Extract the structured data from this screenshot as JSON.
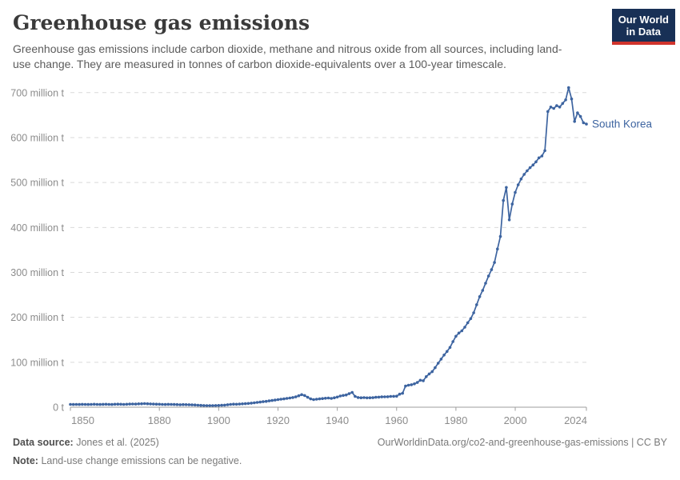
{
  "header": {
    "title": "Greenhouse gas emissions",
    "subtitle": "Greenhouse gas emissions include carbon dioxide, methane and nitrous oxide from all sources, including land-use change. They are measured in tonnes of carbon dioxide-equivalents over a 100-year timescale.",
    "logo": {
      "line1": "Our World",
      "line2": "in Data"
    }
  },
  "footer": {
    "source_label": "Data source:",
    "source_value": "Jones et al. (2025)",
    "note_label": "Note:",
    "note_value": "Land-use change emissions can be negative.",
    "attribution": "OurWorldinData.org/co2-and-greenhouse-gas-emissions | CC BY"
  },
  "colors": {
    "line": "#3d64a0",
    "grid": "#d9d9d9",
    "axis": "#9e9e9e",
    "logo_navy": "#183056",
    "logo_red": "#d0342c"
  },
  "chart_data": {
    "type": "line",
    "title": "Greenhouse gas emissions",
    "entity_label": "South Korea",
    "xlim": [
      1850,
      2024
    ],
    "ylim": [
      0,
      700
    ],
    "grid": true,
    "legend_position": "end-of-line",
    "line_color": "#3d64a0",
    "y_ticks": [
      {
        "value": 0,
        "label": "0 t"
      },
      {
        "value": 100,
        "label": "100 million t"
      },
      {
        "value": 200,
        "label": "200 million t"
      },
      {
        "value": 300,
        "label": "300 million t"
      },
      {
        "value": 400,
        "label": "400 million t"
      },
      {
        "value": 500,
        "label": "500 million t"
      },
      {
        "value": 600,
        "label": "600 million t"
      },
      {
        "value": 700,
        "label": "700 million t"
      }
    ],
    "x_ticks": [
      {
        "year": 1850,
        "label": "1850"
      },
      {
        "year": 1880,
        "label": "1880"
      },
      {
        "year": 1900,
        "label": "1900"
      },
      {
        "year": 1920,
        "label": "1920"
      },
      {
        "year": 1940,
        "label": "1940"
      },
      {
        "year": 1960,
        "label": "1960"
      },
      {
        "year": 1980,
        "label": "1980"
      },
      {
        "year": 2000,
        "label": "2000"
      },
      {
        "year": 2024,
        "label": "2024"
      }
    ],
    "series": [
      {
        "name": "South Korea",
        "points": [
          [
            1850,
            6.2
          ],
          [
            1851,
            6
          ],
          [
            1852,
            6.3
          ],
          [
            1853,
            6.1
          ],
          [
            1854,
            6.4
          ],
          [
            1855,
            6.2
          ],
          [
            1856,
            6
          ],
          [
            1857,
            6.3
          ],
          [
            1858,
            6.5
          ],
          [
            1859,
            6.2
          ],
          [
            1860,
            6
          ],
          [
            1861,
            6.4
          ],
          [
            1862,
            6.6
          ],
          [
            1863,
            6.3
          ],
          [
            1864,
            6.1
          ],
          [
            1865,
            6.5
          ],
          [
            1866,
            6.8
          ],
          [
            1867,
            6.5
          ],
          [
            1868,
            6.3
          ],
          [
            1869,
            6.6
          ],
          [
            1870,
            6.9
          ],
          [
            1871,
            7.2
          ],
          [
            1872,
            7
          ],
          [
            1873,
            7.4
          ],
          [
            1874,
            7.7
          ],
          [
            1875,
            8
          ],
          [
            1876,
            7.6
          ],
          [
            1877,
            7.3
          ],
          [
            1878,
            7
          ],
          [
            1879,
            6.7
          ],
          [
            1880,
            6.5
          ],
          [
            1881,
            6.3
          ],
          [
            1882,
            6.1
          ],
          [
            1883,
            6.4
          ],
          [
            1884,
            6.2
          ],
          [
            1885,
            6
          ],
          [
            1886,
            5.8
          ],
          [
            1887,
            5.6
          ],
          [
            1888,
            5.9
          ],
          [
            1889,
            5.7
          ],
          [
            1890,
            5.5
          ],
          [
            1891,
            5.2
          ],
          [
            1892,
            4.9
          ],
          [
            1893,
            4.5
          ],
          [
            1894,
            4.1
          ],
          [
            1895,
            3.8
          ],
          [
            1896,
            3.6
          ],
          [
            1897,
            3.5
          ],
          [
            1898,
            3.6
          ],
          [
            1899,
            3.8
          ],
          [
            1900,
            4
          ],
          [
            1901,
            4.3
          ],
          [
            1902,
            4.7
          ],
          [
            1903,
            5.6
          ],
          [
            1904,
            6.2
          ],
          [
            1905,
            6.8
          ],
          [
            1906,
            6.5
          ],
          [
            1907,
            7
          ],
          [
            1908,
            7.4
          ],
          [
            1909,
            7.8
          ],
          [
            1910,
            8.3
          ],
          [
            1911,
            9
          ],
          [
            1912,
            9.8
          ],
          [
            1913,
            10.6
          ],
          [
            1914,
            11.4
          ],
          [
            1915,
            12.2
          ],
          [
            1916,
            13
          ],
          [
            1917,
            14
          ],
          [
            1918,
            15
          ],
          [
            1919,
            15.8
          ],
          [
            1920,
            17
          ],
          [
            1921,
            17.8
          ],
          [
            1922,
            18.5
          ],
          [
            1923,
            19.5
          ],
          [
            1924,
            20.5
          ],
          [
            1925,
            21.5
          ],
          [
            1926,
            23
          ],
          [
            1927,
            25.5
          ],
          [
            1928,
            28
          ],
          [
            1929,
            26
          ],
          [
            1930,
            22
          ],
          [
            1931,
            18.5
          ],
          [
            1932,
            17
          ],
          [
            1933,
            17.8
          ],
          [
            1934,
            18.5
          ],
          [
            1935,
            19.2
          ],
          [
            1936,
            20
          ],
          [
            1937,
            20.5
          ],
          [
            1938,
            19.5
          ],
          [
            1939,
            21
          ],
          [
            1940,
            22.6
          ],
          [
            1941,
            24.9
          ],
          [
            1942,
            26.1
          ],
          [
            1943,
            27.3
          ],
          [
            1944,
            30
          ],
          [
            1945,
            33
          ],
          [
            1946,
            24
          ],
          [
            1947,
            21.5
          ],
          [
            1948,
            21
          ],
          [
            1949,
            21.3
          ],
          [
            1950,
            20.8
          ],
          [
            1951,
            21
          ],
          [
            1952,
            21.2
          ],
          [
            1953,
            22
          ],
          [
            1954,
            22.5
          ],
          [
            1955,
            23
          ],
          [
            1956,
            23.2
          ],
          [
            1957,
            23.4
          ],
          [
            1958,
            24
          ],
          [
            1959,
            24.2
          ],
          [
            1960,
            24.5
          ],
          [
            1961,
            29
          ],
          [
            1962,
            31
          ],
          [
            1963,
            47
          ],
          [
            1964,
            49
          ],
          [
            1965,
            50
          ],
          [
            1966,
            52
          ],
          [
            1967,
            55
          ],
          [
            1968,
            60
          ],
          [
            1969,
            59
          ],
          [
            1970,
            68
          ],
          [
            1971,
            74
          ],
          [
            1972,
            79
          ],
          [
            1973,
            88
          ],
          [
            1974,
            98
          ],
          [
            1975,
            107
          ],
          [
            1976,
            116
          ],
          [
            1977,
            124
          ],
          [
            1978,
            133
          ],
          [
            1979,
            146
          ],
          [
            1980,
            158
          ],
          [
            1981,
            165
          ],
          [
            1982,
            170
          ],
          [
            1983,
            178
          ],
          [
            1984,
            188
          ],
          [
            1985,
            197
          ],
          [
            1986,
            210
          ],
          [
            1987,
            228
          ],
          [
            1988,
            246
          ],
          [
            1989,
            260
          ],
          [
            1990,
            276
          ],
          [
            1991,
            292
          ],
          [
            1992,
            306
          ],
          [
            1993,
            322
          ],
          [
            1994,
            352
          ],
          [
            1995,
            380
          ],
          [
            1996,
            460
          ],
          [
            1997,
            489
          ],
          [
            1998,
            417
          ],
          [
            1999,
            452
          ],
          [
            2000,
            478
          ],
          [
            2001,
            495
          ],
          [
            2002,
            508
          ],
          [
            2003,
            518
          ],
          [
            2004,
            526
          ],
          [
            2005,
            533
          ],
          [
            2006,
            539
          ],
          [
            2007,
            546
          ],
          [
            2008,
            555
          ],
          [
            2009,
            559
          ],
          [
            2010,
            571
          ],
          [
            2011,
            658
          ],
          [
            2012,
            668
          ],
          [
            2013,
            665
          ],
          [
            2014,
            671
          ],
          [
            2015,
            668
          ],
          [
            2016,
            676
          ],
          [
            2017,
            684
          ],
          [
            2018,
            711
          ],
          [
            2019,
            686
          ],
          [
            2020,
            636
          ],
          [
            2021,
            655
          ],
          [
            2022,
            647
          ],
          [
            2023,
            633
          ],
          [
            2024,
            630
          ]
        ]
      }
    ]
  }
}
